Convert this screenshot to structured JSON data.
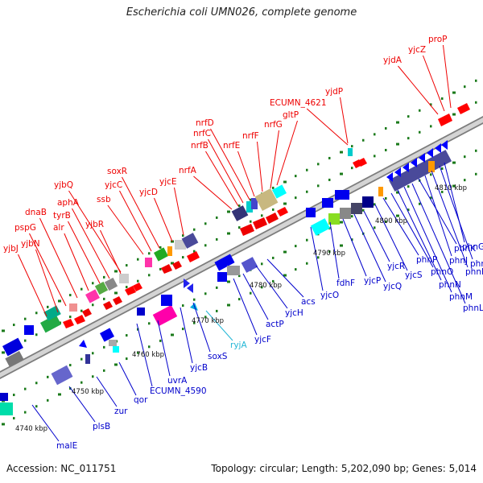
{
  "title": "Escherichia coli UMN026, complete genome",
  "footer": {
    "accession": "Accession: NC_011751",
    "summary": "Topology: circular; Length: 5,202,090 bp; Genes: 5,014"
  },
  "kbp_labels": [
    "4740 kbp",
    "4750 kbp",
    "4760 kbp",
    "4770 kbp",
    "4780 kbp",
    "4790 kbp",
    "4800 kbp",
    "4810 kbp"
  ],
  "genes_upper": [
    "yjbJ",
    "yjbN",
    "pspG",
    "dnaB",
    "alr",
    "tyrB",
    "aphA",
    "yjbQ",
    "yjbR",
    "ssb",
    "yjcC",
    "soxR",
    "yjcD",
    "yjcE",
    "nrfA",
    "nrfB",
    "nrfC",
    "nrfD",
    "nrfE",
    "nrfF",
    "nrfG",
    "gltP",
    "ECUMN_4621",
    "yjdP",
    "yjdA",
    "yjcZ",
    "proP"
  ],
  "genes_lower": [
    "malE",
    "plsB",
    "zur",
    "qor",
    "ECUMN_4590",
    "uvrA",
    "yjcB",
    "soxS",
    "ryjA",
    "yjcF",
    "actP",
    "yjcH",
    "acs",
    "yjcO",
    "fdhF",
    "yjcP",
    "yjcQ",
    "yjcR",
    "yjcS",
    "phnP",
    "phnO",
    "phnN",
    "phnM",
    "phnL",
    "phnK",
    "phnJ",
    "phnI",
    "phnH",
    "phnG"
  ],
  "colors": {
    "upper_label": "#ee0000",
    "lower_label": "#0000cc",
    "rna_label": "#22b6d6",
    "backbone": "#8a8a8a",
    "tick": "#1a7a1a"
  }
}
